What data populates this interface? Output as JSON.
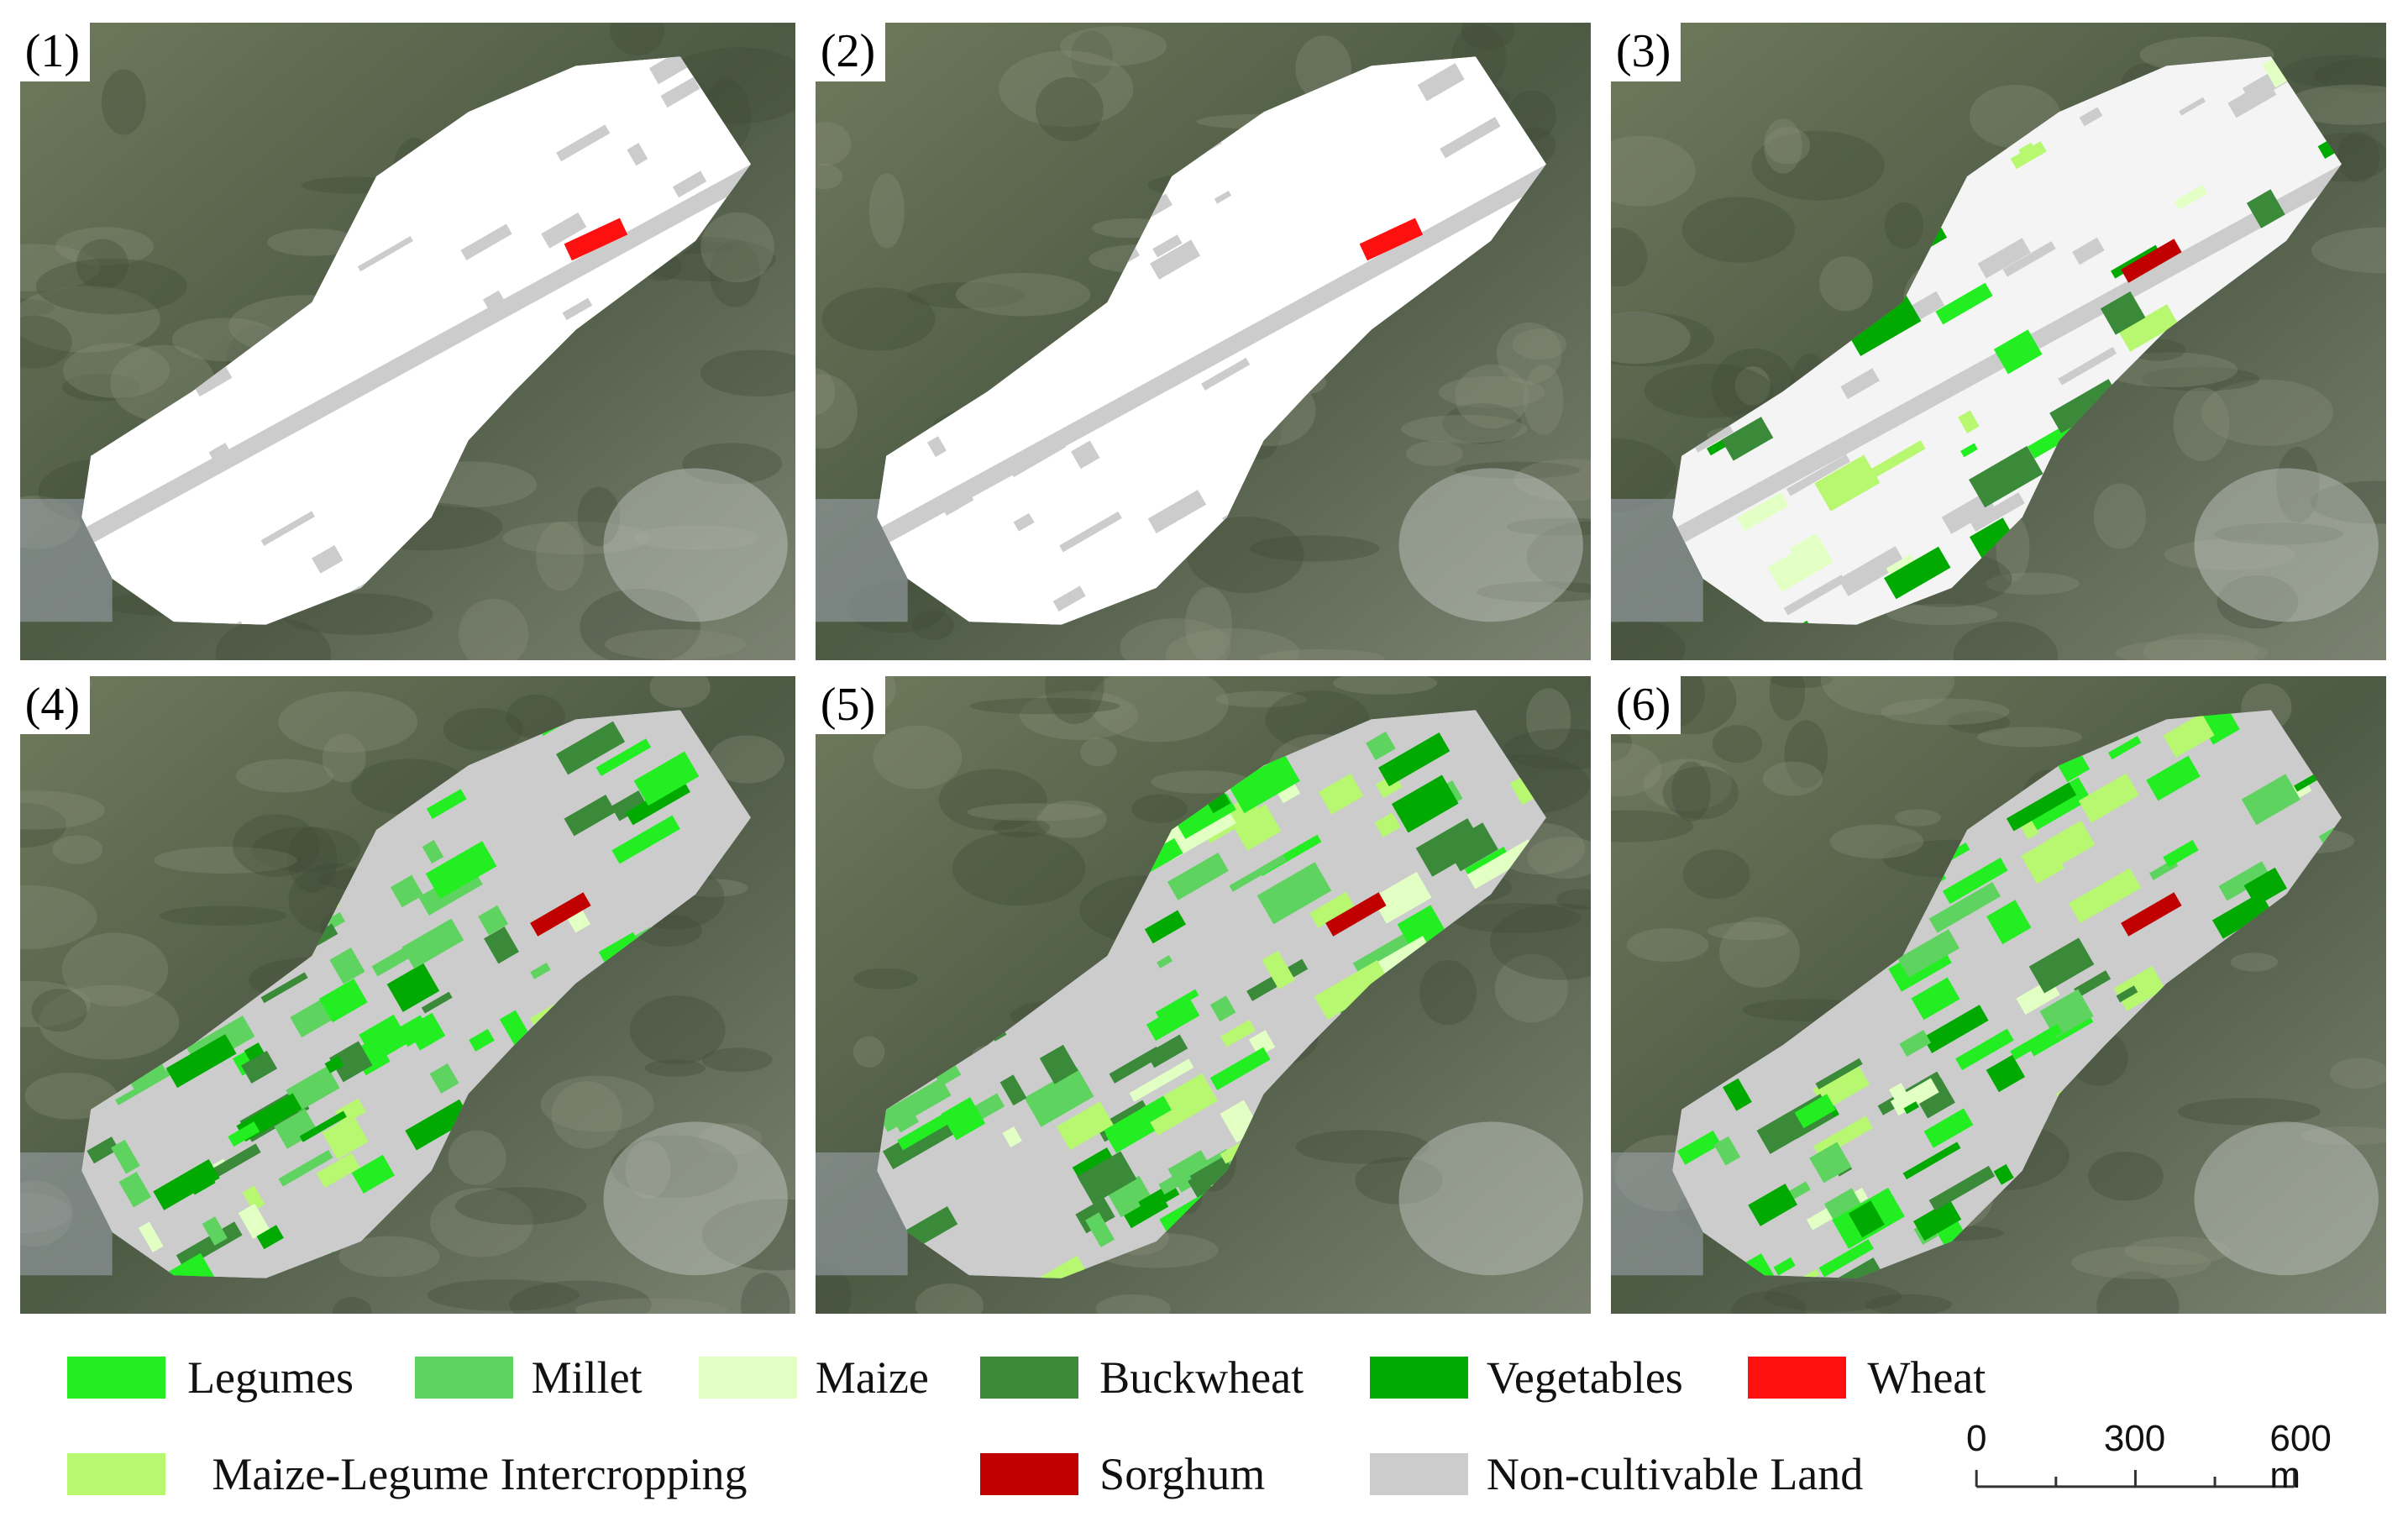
{
  "panels": [
    {
      "label": "(1)"
    },
    {
      "label": "(2)"
    },
    {
      "label": "(3)"
    },
    {
      "label": "(4)"
    },
    {
      "label": "(5)"
    },
    {
      "label": "(6)"
    }
  ],
  "legend": [
    {
      "label": "Legumes",
      "color": "#22ee22"
    },
    {
      "label": "Millet",
      "color": "#5fd35f"
    },
    {
      "label": "Maize",
      "color": "#e2ffc4"
    },
    {
      "label": "Buckwheat",
      "color": "#3a8a3a"
    },
    {
      "label": "Vegetables",
      "color": "#00aa00"
    },
    {
      "label": "Wheat",
      "color": "#ff1010"
    },
    {
      "label": "Maize-Legume Intercropping",
      "color": "#b8f870"
    },
    {
      "label": "Sorghum",
      "color": "#c00000"
    },
    {
      "label": "Non-cultivable Land",
      "color": "#cccccc"
    }
  ],
  "scale_bar": {
    "labels": [
      "0",
      "300",
      "600 m"
    ]
  }
}
